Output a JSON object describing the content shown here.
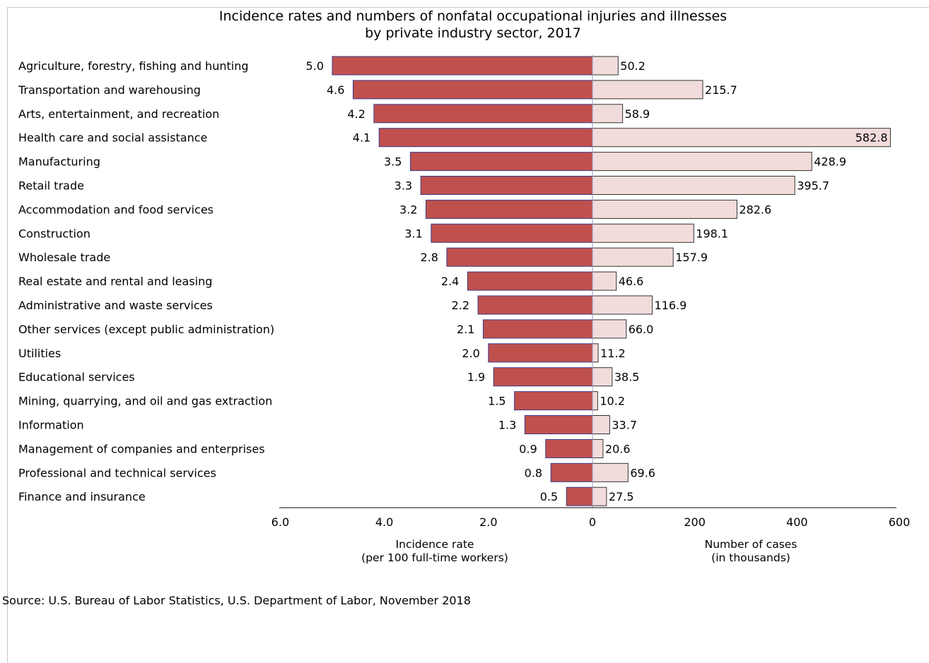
{
  "chart_data": {
    "type": "bar",
    "title": "Incidence rates and numbers of nonfatal occupational injuries and illnesses",
    "subtitle": "by private industry sector, 2017",
    "categories": [
      "Agriculture, forestry, fishing and hunting",
      "Transportation and warehousing",
      "Arts, entertainment, and recreation",
      "Health care and social assistance",
      "Manufacturing",
      "Retail trade",
      "Accommodation and food services",
      "Construction",
      "Wholesale trade",
      "Real estate and rental and leasing",
      "Administrative and waste services",
      "Other services (except public administration)",
      "Utilities",
      "Educational services",
      "Mining, quarrying, and oil and gas extraction",
      "Information",
      "Management of companies and enterprises",
      "Professional and technical services",
      "Finance and insurance"
    ],
    "series": [
      {
        "values": [
          5.0,
          4.6,
          4.2,
          4.1,
          3.5,
          3.3,
          3.2,
          3.1,
          2.8,
          2.4,
          2.2,
          2.1,
          2.0,
          1.9,
          1.5,
          1.3,
          0.9,
          0.8,
          0.5
        ],
        "labels": [
          "5.0",
          "4.6",
          "4.2",
          "4.1",
          "3.5",
          "3.3",
          "3.2",
          "3.1",
          "2.8",
          "2.4",
          "2.2",
          "2.1",
          "2.0",
          "1.9",
          "1.5",
          "1.3",
          "0.9",
          "0.8",
          "0.5"
        ],
        "color": "#c0504d"
      },
      {
        "values": [
          50.2,
          215.7,
          58.9,
          582.8,
          428.9,
          395.7,
          282.6,
          198.1,
          157.9,
          46.6,
          116.9,
          66.0,
          11.2,
          38.5,
          10.2,
          33.7,
          20.6,
          69.6,
          27.5
        ],
        "labels": [
          "50.2",
          "215.7",
          "58.9",
          "582.8",
          "428.9",
          "395.7",
          "282.6",
          "198.1",
          "157.9",
          "46.6",
          "116.9",
          "66.0",
          "11.2",
          "38.5",
          "10.2",
          "33.7",
          "20.6",
          "69.6",
          "27.5"
        ],
        "color": "#f2dcdb"
      }
    ],
    "left_axis": {
      "label_line1": "Incidence rate",
      "label_line2": "(per 100 full-time workers)",
      "range": [
        0,
        6
      ],
      "reversed": true,
      "ticks": [
        "6.0",
        "4.0",
        "2.0",
        "0"
      ],
      "tick_values": [
        6,
        4,
        2,
        0
      ]
    },
    "right_axis": {
      "label_line1": "Number of cases",
      "label_line2": "(in thousands)",
      "range": [
        0,
        600
      ],
      "ticks": [
        "200",
        "400",
        "600"
      ],
      "tick_values": [
        200,
        400,
        600
      ]
    },
    "grid": false,
    "legend": "none"
  },
  "source": "Source: U.S. Bureau of Labor Statistics, U.S. Department of Labor, November 2018"
}
